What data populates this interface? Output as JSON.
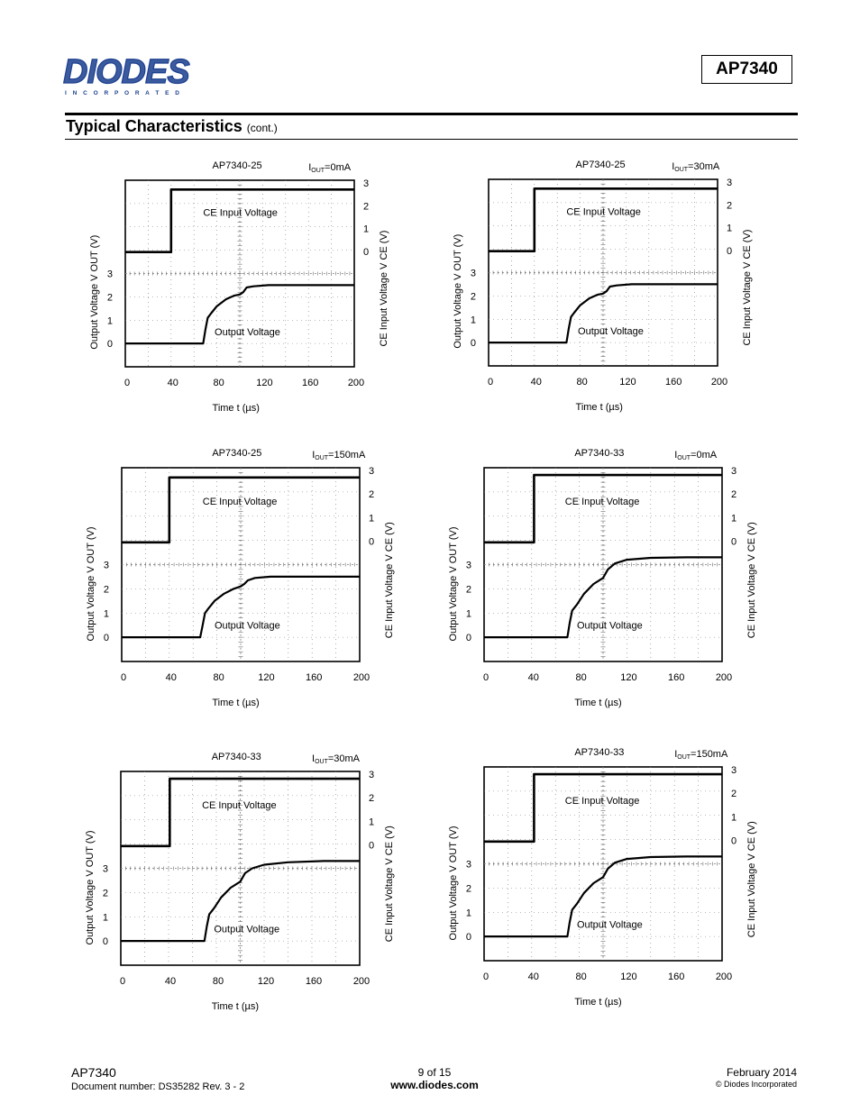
{
  "header": {
    "logo_text": "DIODES",
    "logo_sub": "I N C O R P O R A T E D",
    "part_number": "AP7340",
    "section_title": "Typical Characteristics",
    "section_suffix": "(cont.)"
  },
  "colors": {
    "ink": "#000000",
    "grid": "#555555",
    "background": "#ffffff"
  },
  "chart_data": [
    {
      "type": "line",
      "title": "AP7340-25",
      "condition": "IOUT=0mA",
      "xlabel": "Time t (µs)",
      "ylabel_left": "Output Voltage V OUT (V)",
      "ylabel_right": "CE Input Voltage V CE (V)",
      "x_ticks": [
        "0",
        "40",
        "80",
        "120",
        "160",
        "200"
      ],
      "y_ticks_left": [
        "0",
        "1",
        "2",
        "3"
      ],
      "y_ticks_right": [
        "0",
        "1",
        "2",
        "3"
      ],
      "xlim": [
        0,
        200
      ],
      "grid": true,
      "series": [
        {
          "name": "CE Input Voltage",
          "x": [
            0,
            40,
            40,
            200
          ],
          "y": [
            0,
            0,
            2.7,
            2.7
          ]
        },
        {
          "name": "Output Voltage",
          "x": [
            0,
            30,
            68,
            70,
            72,
            75,
            80,
            88,
            95,
            100,
            103,
            106,
            112,
            125,
            150,
            200
          ],
          "y": [
            0,
            0,
            0,
            0.6,
            1.1,
            1.3,
            1.6,
            1.9,
            2.05,
            2.1,
            2.2,
            2.4,
            2.45,
            2.5,
            2.5,
            2.5
          ]
        }
      ]
    },
    {
      "type": "line",
      "title": "AP7340-25",
      "condition": "IOUT=30mA",
      "xlabel": "Time t (µs)",
      "ylabel_left": "Output Voltage V OUT (V)",
      "ylabel_right": "CE Input Voltage V CE (V)",
      "x_ticks": [
        "0",
        "40",
        "80",
        "120",
        "160",
        "200"
      ],
      "y_ticks_left": [
        "0",
        "1",
        "2",
        "3"
      ],
      "y_ticks_right": [
        "0",
        "1",
        "2",
        "3"
      ],
      "xlim": [
        0,
        200
      ],
      "grid": true,
      "series": [
        {
          "name": "CE Input Voltage",
          "x": [
            0,
            40,
            40,
            200
          ],
          "y": [
            0,
            0,
            2.7,
            2.7
          ]
        },
        {
          "name": "Output Voltage",
          "x": [
            0,
            30,
            68,
            70,
            72,
            75,
            80,
            88,
            95,
            100,
            103,
            106,
            112,
            125,
            150,
            200
          ],
          "y": [
            0,
            0,
            0,
            0.6,
            1.1,
            1.3,
            1.6,
            1.9,
            2.05,
            2.1,
            2.2,
            2.4,
            2.45,
            2.5,
            2.5,
            2.5
          ]
        }
      ]
    },
    {
      "type": "line",
      "title": "AP7340-25",
      "condition": "IOUT=150mA",
      "xlabel": "Time t (µs)",
      "ylabel_left": "Output Voltage V OUT (V)",
      "ylabel_right": "CE Input Voltage V CE (V)",
      "x_ticks": [
        "0",
        "40",
        "80",
        "120",
        "160",
        "200"
      ],
      "y_ticks_left": [
        "0",
        "1",
        "2",
        "3"
      ],
      "y_ticks_right": [
        "0",
        "1",
        "2",
        "3"
      ],
      "xlim": [
        0,
        200
      ],
      "grid": true,
      "series": [
        {
          "name": "CE Input Voltage",
          "x": [
            0,
            40,
            40,
            200
          ],
          "y": [
            0,
            0,
            2.7,
            2.7
          ]
        },
        {
          "name": "Output Voltage",
          "x": [
            0,
            30,
            66,
            68,
            70,
            73,
            78,
            86,
            94,
            100,
            103,
            106,
            112,
            125,
            150,
            200
          ],
          "y": [
            0,
            0,
            0,
            0.5,
            1.0,
            1.2,
            1.5,
            1.8,
            2.0,
            2.1,
            2.2,
            2.35,
            2.45,
            2.5,
            2.5,
            2.5
          ]
        }
      ]
    },
    {
      "type": "line",
      "title": "AP7340-33",
      "condition": "IOUT=0mA",
      "xlabel": "Time t (µs)",
      "ylabel_left": "Output Voltage V OUT (V)",
      "ylabel_right": "CE Input Voltage V CE (V)",
      "x_ticks": [
        "0",
        "40",
        "80",
        "120",
        "160",
        "200"
      ],
      "y_ticks_left": [
        "0",
        "1",
        "2",
        "3"
      ],
      "y_ticks_right": [
        "0",
        "1",
        "2",
        "3"
      ],
      "xlim": [
        0,
        200
      ],
      "grid": true,
      "series": [
        {
          "name": "CE Input Voltage",
          "x": [
            0,
            42,
            42,
            200
          ],
          "y": [
            0,
            0,
            2.8,
            2.8
          ]
        },
        {
          "name": "Output Voltage",
          "x": [
            0,
            30,
            70,
            72,
            74,
            78,
            84,
            92,
            100,
            104,
            110,
            120,
            140,
            170,
            200
          ],
          "y": [
            0,
            0,
            0,
            0.6,
            1.1,
            1.35,
            1.8,
            2.2,
            2.45,
            2.8,
            3.05,
            3.2,
            3.28,
            3.3,
            3.3
          ]
        }
      ]
    },
    {
      "type": "line",
      "title": "AP7340-33",
      "condition": "IOUT=30mA",
      "xlabel": "Time t (µs)",
      "ylabel_left": "Output Voltage V OUT (V)",
      "ylabel_right": "CE Input Voltage V CE (V)",
      "x_ticks": [
        "0",
        "40",
        "80",
        "120",
        "160",
        "200"
      ],
      "y_ticks_left": [
        "0",
        "1",
        "2",
        "3"
      ],
      "y_ticks_right": [
        "0",
        "1",
        "2",
        "3"
      ],
      "xlim": [
        0,
        200
      ],
      "grid": true,
      "series": [
        {
          "name": "CE Input Voltage",
          "x": [
            0,
            41,
            41,
            200
          ],
          "y": [
            0,
            0,
            2.8,
            2.8
          ]
        },
        {
          "name": "Output Voltage",
          "x": [
            0,
            30,
            70,
            72,
            74,
            78,
            84,
            92,
            100,
            104,
            110,
            120,
            140,
            170,
            200
          ],
          "y": [
            0,
            0,
            0,
            0.6,
            1.1,
            1.35,
            1.8,
            2.2,
            2.45,
            2.8,
            3.0,
            3.15,
            3.25,
            3.3,
            3.3
          ]
        }
      ]
    },
    {
      "type": "line",
      "title": "AP7340-33",
      "condition": "IOUT=150mA",
      "xlabel": "Time t (µs)",
      "ylabel_left": "Output Voltage V OUT (V)",
      "ylabel_right": "CE Input Voltage V CE (V)",
      "x_ticks": [
        "0",
        "40",
        "80",
        "120",
        "160",
        "200"
      ],
      "y_ticks_left": [
        "0",
        "1",
        "2",
        "3"
      ],
      "y_ticks_right": [
        "0",
        "1",
        "2",
        "3"
      ],
      "xlim": [
        0,
        200
      ],
      "grid": true,
      "series": [
        {
          "name": "CE Input Voltage",
          "x": [
            0,
            42,
            42,
            200
          ],
          "y": [
            0,
            0,
            2.8,
            2.8
          ]
        },
        {
          "name": "Output Voltage",
          "x": [
            0,
            30,
            70,
            72,
            74,
            78,
            84,
            92,
            100,
            104,
            110,
            120,
            140,
            170,
            200
          ],
          "y": [
            0,
            0,
            0,
            0.6,
            1.1,
            1.35,
            1.8,
            2.2,
            2.45,
            2.8,
            3.05,
            3.2,
            3.28,
            3.3,
            3.3
          ]
        }
      ]
    }
  ],
  "footer": {
    "part_number": "AP7340",
    "document_number": "Document number: DS35282 Rev. 3 - 2",
    "page": "9 of 15",
    "website": "www.diodes.com",
    "date": "February 2014",
    "copyright": "© Diodes Incorporated"
  }
}
